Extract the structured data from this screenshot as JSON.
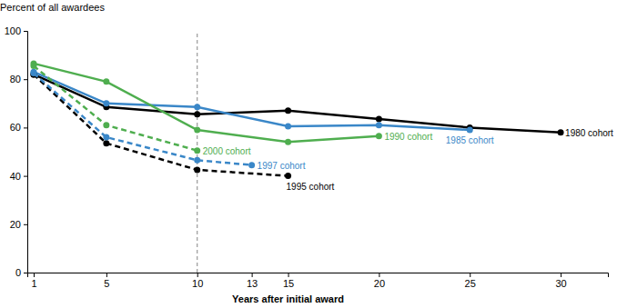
{
  "chart_data": {
    "type": "line",
    "y_label": "Percent of all awardees",
    "x_label": "Years after initial award",
    "xlim": [
      0.65,
      32.6
    ],
    "xticks": [
      1,
      5,
      10,
      13,
      15,
      20,
      25,
      30
    ],
    "ylim": [
      0,
      100
    ],
    "yticks": [
      0,
      20,
      40,
      60,
      80,
      100
    ],
    "grid": false,
    "reference_line_x": 10,
    "series": [
      {
        "name": "1980 cohort",
        "color": "#000000",
        "line_style": "solid",
        "marker": "circle",
        "x": [
          1,
          5,
          10,
          15,
          20,
          25,
          30
        ],
        "values": [
          82,
          68.5,
          65.5,
          67,
          63.5,
          60,
          58
        ]
      },
      {
        "name": "1985 cohort",
        "color": "#3a87c8",
        "line_style": "solid",
        "marker": "circle",
        "x": [
          1,
          5,
          10,
          15,
          20,
          25
        ],
        "values": [
          83,
          70,
          68.5,
          60.5,
          61,
          59
        ]
      },
      {
        "name": "1990 cohort",
        "color": "#4fae4f",
        "line_style": "solid",
        "marker": "circle",
        "x": [
          1,
          5,
          10,
          15,
          20
        ],
        "values": [
          86.5,
          79,
          59,
          54,
          56.5
        ]
      },
      {
        "name": "1995 cohort",
        "color": "#000000",
        "line_style": "dashed",
        "marker": "circle",
        "x": [
          1,
          5,
          10,
          15
        ],
        "values": [
          82,
          53.5,
          42.5,
          40
        ]
      },
      {
        "name": "1997 cohort",
        "color": "#3a87c8",
        "line_style": "dashed",
        "marker": "circle",
        "x": [
          1,
          5,
          10,
          13
        ],
        "values": [
          82.5,
          56,
          46.5,
          44.5
        ]
      },
      {
        "name": "2000 cohort",
        "color": "#4fae4f",
        "line_style": "dashed",
        "marker": "circle",
        "x": [
          1,
          5,
          10
        ],
        "values": [
          85.5,
          61,
          50.5
        ]
      }
    ]
  }
}
